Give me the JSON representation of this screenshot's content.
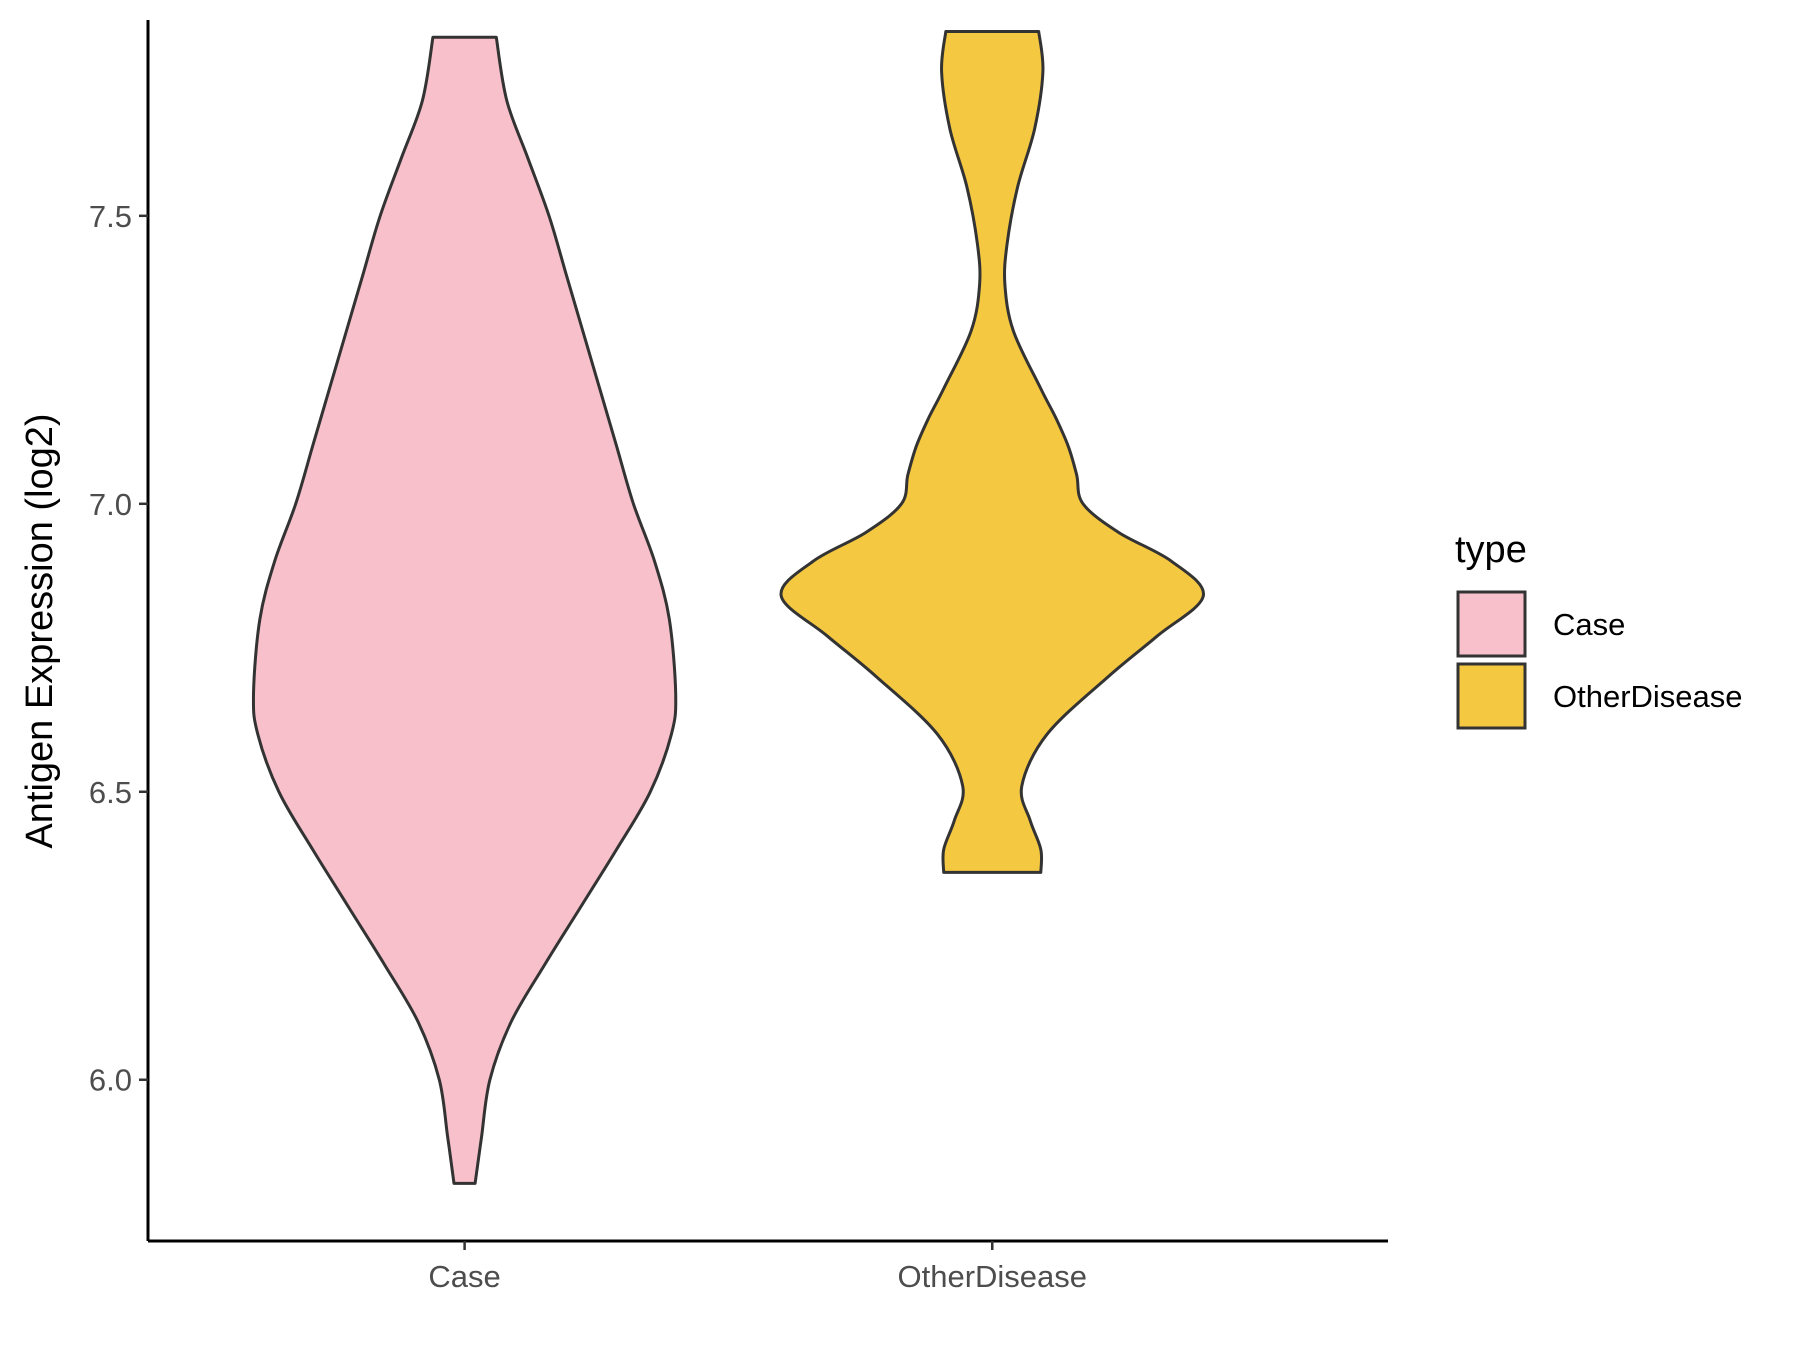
{
  "chart_data": {
    "type": "violin",
    "xlabel": "",
    "ylabel": "Antigen Expression (log2)",
    "categories": [
      "Case",
      "OtherDisease"
    ],
    "ylim": [
      5.72,
      7.84
    ],
    "yticks": [
      "6.0",
      "6.5",
      "7.0",
      "7.5"
    ],
    "grid": false,
    "legend": {
      "title": "type",
      "position": "right",
      "entries": [
        "Case",
        "OtherDisease"
      ]
    },
    "series": [
      {
        "name": "Case",
        "color": "#f7c0cb",
        "min": 5.82,
        "max": 7.81,
        "density": [
          [
            5.82,
            0.05
          ],
          [
            5.9,
            0.08
          ],
          [
            6.0,
            0.12
          ],
          [
            6.1,
            0.22
          ],
          [
            6.2,
            0.38
          ],
          [
            6.3,
            0.55
          ],
          [
            6.4,
            0.72
          ],
          [
            6.5,
            0.88
          ],
          [
            6.6,
            0.98
          ],
          [
            6.67,
            1.0
          ],
          [
            6.8,
            0.97
          ],
          [
            6.9,
            0.9
          ],
          [
            7.0,
            0.8
          ],
          [
            7.1,
            0.72
          ],
          [
            7.2,
            0.64
          ],
          [
            7.3,
            0.56
          ],
          [
            7.4,
            0.48
          ],
          [
            7.5,
            0.4
          ],
          [
            7.6,
            0.3
          ],
          [
            7.7,
            0.2
          ],
          [
            7.81,
            0.15
          ]
        ]
      },
      {
        "name": "OtherDisease",
        "color": "#f5c842",
        "min": 6.36,
        "max": 7.82,
        "density": [
          [
            6.36,
            0.23
          ],
          [
            6.4,
            0.23
          ],
          [
            6.45,
            0.18
          ],
          [
            6.51,
            0.14
          ],
          [
            6.6,
            0.26
          ],
          [
            6.7,
            0.55
          ],
          [
            6.77,
            0.78
          ],
          [
            6.84,
            1.0
          ],
          [
            6.9,
            0.85
          ],
          [
            6.95,
            0.6
          ],
          [
            7.0,
            0.43
          ],
          [
            7.05,
            0.4
          ],
          [
            7.1,
            0.36
          ],
          [
            7.15,
            0.3
          ],
          [
            7.2,
            0.23
          ],
          [
            7.3,
            0.1
          ],
          [
            7.38,
            0.06
          ],
          [
            7.45,
            0.07
          ],
          [
            7.55,
            0.12
          ],
          [
            7.65,
            0.2
          ],
          [
            7.75,
            0.24
          ],
          [
            7.82,
            0.22
          ]
        ]
      }
    ]
  }
}
